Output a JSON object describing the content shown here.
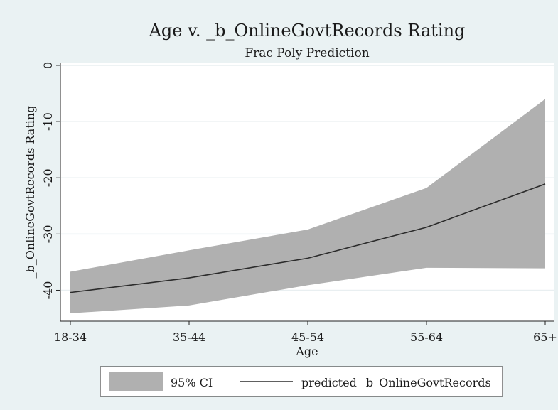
{
  "chart_data": {
    "type": "area",
    "title": "Age v. _b_OnlineGovtRecords Rating",
    "subtitle": "Frac Poly Prediction",
    "xlabel": "Age",
    "ylabel": "_b_OnlineGovtRecords Rating",
    "categories": [
      "18-34",
      "35-44",
      "45-54",
      "55-64",
      "65+"
    ],
    "ylim": [
      -45.5,
      0.5
    ],
    "yticks": [
      0,
      -10,
      -20,
      -30,
      -40
    ],
    "yticklabels": [
      "0",
      "-10",
      "-20",
      "-30",
      "-40"
    ],
    "grid": true,
    "series": [
      {
        "name": "95% CI",
        "kind": "band",
        "upper": [
          -36.7,
          -32.9,
          -29.2,
          -21.8,
          -6.0
        ],
        "lower": [
          -44.1,
          -42.7,
          -39.1,
          -36.0,
          -36.1
        ],
        "color": "#b0b0b0"
      },
      {
        "name": "predicted _b_OnlineGovtRecords",
        "kind": "line",
        "values": [
          -40.4,
          -37.8,
          -34.3,
          -28.8,
          -21.1
        ],
        "color": "#2b2b2b"
      }
    ],
    "legend_position": "bottom"
  }
}
